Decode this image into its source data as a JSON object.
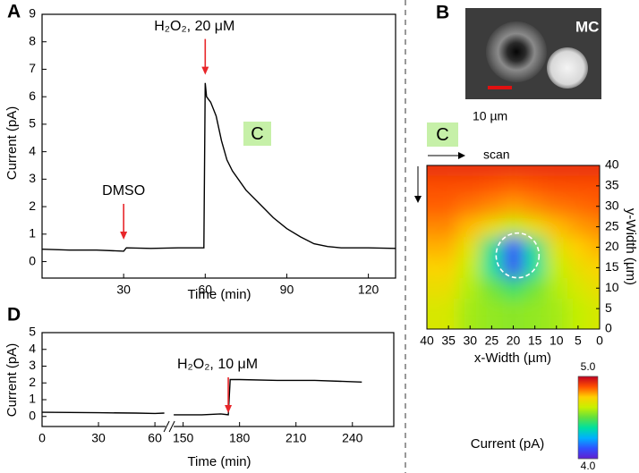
{
  "chart_data": [
    {
      "type": "line",
      "panel": "A",
      "box_label": "C",
      "xlabel": "Time (min)",
      "ylabel": "Current (pA)",
      "xlim": [
        0,
        130
      ],
      "ylim": [
        -0.6,
        9
      ],
      "xticks": [
        30,
        60,
        90,
        120
      ],
      "yticks": [
        0,
        1,
        2,
        3,
        4,
        5,
        6,
        7,
        8,
        9
      ],
      "series": [
        {
          "color": "#000000",
          "x": [
            0,
            10,
            20,
            30,
            31,
            40,
            50,
            59.5,
            60,
            60.5,
            62,
            64,
            66,
            68,
            70,
            75,
            80,
            85,
            90,
            95,
            100,
            105,
            110,
            120,
            130
          ],
          "values": [
            0.45,
            0.42,
            0.42,
            0.38,
            0.5,
            0.48,
            0.5,
            0.5,
            6.5,
            6.0,
            5.8,
            5.3,
            4.4,
            3.7,
            3.3,
            2.6,
            2.1,
            1.6,
            1.2,
            0.9,
            0.65,
            0.55,
            0.5,
            0.5,
            0.48
          ]
        }
      ],
      "annotation_color": "#e8262a",
      "annotations": [
        {
          "text": "DMSO",
          "x": 30,
          "y": 0.8
        },
        {
          "text": "H₂O₂, 20 μM",
          "x": 60,
          "y": 6.8
        }
      ]
    },
    {
      "type": "heatmap",
      "box_label": "C",
      "scan_label": "scan",
      "xlabel": "x-Width (µm)",
      "ylabel": "y-Width (µm)",
      "xlim": [
        40,
        0
      ],
      "ylim": [
        0,
        40
      ],
      "xticks": [
        40,
        35,
        30,
        25,
        20,
        15,
        10,
        5,
        0
      ],
      "yticks": [
        0,
        5,
        10,
        15,
        20,
        25,
        30,
        35,
        40
      ],
      "x": [
        0,
        5,
        10,
        15,
        20,
        25,
        30,
        35,
        40
      ],
      "y": [
        40,
        35,
        30,
        25,
        20,
        15,
        10,
        5,
        0
      ],
      "values": [
        [
          4.92,
          4.92,
          4.92,
          4.92,
          4.92,
          4.92,
          4.92,
          4.92,
          4.92
        ],
        [
          4.88,
          4.88,
          4.88,
          4.87,
          4.86,
          4.87,
          4.88,
          4.88,
          4.88
        ],
        [
          4.86,
          4.85,
          4.84,
          4.82,
          4.8,
          4.82,
          4.84,
          4.85,
          4.86
        ],
        [
          4.82,
          4.8,
          4.77,
          4.7,
          4.62,
          4.7,
          4.77,
          4.8,
          4.82
        ],
        [
          4.78,
          4.75,
          4.68,
          4.4,
          4.12,
          4.4,
          4.68,
          4.75,
          4.78
        ],
        [
          4.74,
          4.7,
          4.62,
          4.38,
          4.1,
          4.38,
          4.62,
          4.7,
          4.74
        ],
        [
          4.7,
          4.66,
          4.6,
          4.52,
          4.45,
          4.52,
          4.6,
          4.66,
          4.7
        ],
        [
          4.68,
          4.63,
          4.58,
          4.55,
          4.52,
          4.55,
          4.58,
          4.63,
          4.68
        ],
        [
          4.66,
          4.62,
          4.58,
          4.56,
          4.55,
          4.56,
          4.58,
          4.62,
          4.66
        ]
      ],
      "colormap": [
        "#6020d0",
        "#3050ff",
        "#00b0ff",
        "#00e0a0",
        "#60e040",
        "#c8f000",
        "#ffd000",
        "#ff5000",
        "#c00020"
      ],
      "clim": [
        4,
        5
      ],
      "cticks": [
        {
          "value": 4,
          "label": "4.0"
        },
        {
          "value": 5,
          "label": "5.0"
        }
      ],
      "clabel": "Current (pA)"
    },
    {
      "type": "line",
      "panel": "D",
      "xlabel": "Time (min)",
      "ylabel": "Current (pA)",
      "xlim": [
        0,
        262
      ],
      "xbreak": [
        70,
        145
      ],
      "ylim": [
        -0.6,
        5
      ],
      "xticks": [
        0,
        30,
        60,
        150,
        180,
        210,
        240
      ],
      "yticks": [
        0,
        1,
        2,
        3,
        4,
        5
      ],
      "series": [
        {
          "color": "#000000",
          "x": [
            0,
            30,
            50,
            60,
            65,
            145,
            160,
            170,
            174,
            175,
            180,
            200,
            220,
            245
          ],
          "values": [
            0.25,
            0.22,
            0.2,
            0.18,
            0.2,
            0.1,
            0.1,
            0.15,
            0.1,
            2.2,
            2.2,
            2.15,
            2.15,
            2.05
          ]
        }
      ],
      "annotation_color": "#e8262a",
      "annotations": [
        {
          "text": "H₂O₂, 10 μM",
          "x": 174,
          "y": 0.2
        }
      ]
    }
  ],
  "micrograph": {
    "panel": "B",
    "label": "MC",
    "scale_bar": "10 µm"
  }
}
